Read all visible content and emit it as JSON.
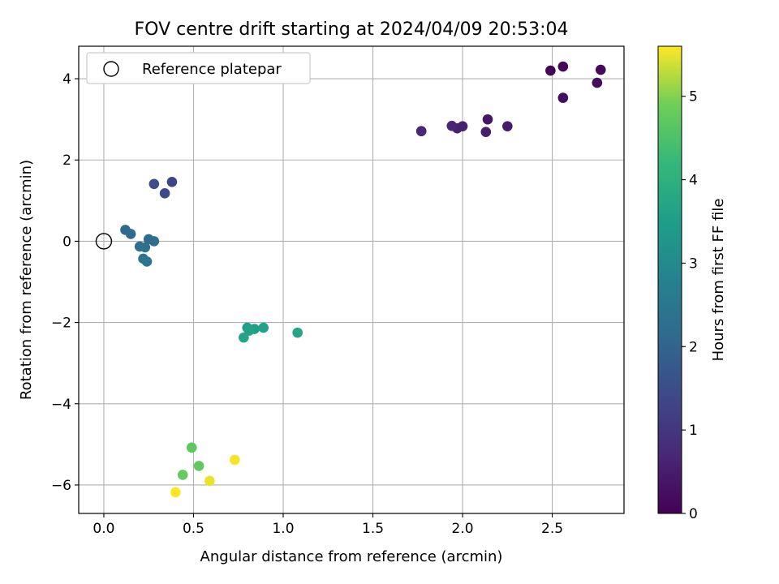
{
  "chart_data": {
    "type": "scatter",
    "title": "FOV centre drift starting at 2024/04/09 20:53:04",
    "xlabel": "Angular distance from reference (arcmin)",
    "ylabel": "Rotation from reference (arcmin)",
    "xlim": [
      -0.14,
      2.9
    ],
    "ylim": [
      -6.7,
      4.8
    ],
    "xticks": [
      0.0,
      0.5,
      1.0,
      1.5,
      2.0,
      2.5
    ],
    "xtick_labels": [
      "0.0",
      "0.5",
      "1.0",
      "1.5",
      "2.0",
      "2.5"
    ],
    "yticks": [
      -6,
      -4,
      -2,
      0,
      2,
      4
    ],
    "ytick_labels": [
      "−6",
      "−4",
      "−2",
      "0",
      "2",
      "4"
    ],
    "grid": true,
    "legend": {
      "placement": "top-left",
      "entries": [
        {
          "label": "Reference platepar",
          "marker": "open-circle"
        }
      ]
    },
    "reference": {
      "x": 0.0,
      "y": 0.0
    },
    "colorbar": {
      "label": "Hours from first FF file",
      "range": [
        0,
        5.6
      ],
      "ticks": [
        0,
        1,
        2,
        3,
        4,
        5
      ],
      "tick_labels": [
        "0",
        "1",
        "2",
        "3",
        "4",
        "5"
      ],
      "colormap": "viridis"
    },
    "points": [
      {
        "x": 2.49,
        "y": 4.2,
        "c": 0.05
      },
      {
        "x": 2.56,
        "y": 4.3,
        "c": 0.1
      },
      {
        "x": 2.77,
        "y": 4.22,
        "c": 0.15
      },
      {
        "x": 2.75,
        "y": 3.9,
        "c": 0.2
      },
      {
        "x": 2.56,
        "y": 3.53,
        "c": 0.25
      },
      {
        "x": 2.14,
        "y": 3.0,
        "c": 0.35
      },
      {
        "x": 2.25,
        "y": 2.83,
        "c": 0.45
      },
      {
        "x": 2.13,
        "y": 2.69,
        "c": 0.5
      },
      {
        "x": 2.0,
        "y": 2.83,
        "c": 0.55
      },
      {
        "x": 1.97,
        "y": 2.78,
        "c": 0.6
      },
      {
        "x": 1.94,
        "y": 2.84,
        "c": 0.65
      },
      {
        "x": 1.77,
        "y": 2.71,
        "c": 0.7
      },
      {
        "x": 1.77,
        "y": 2.71,
        "c": 0.72
      },
      {
        "x": 0.38,
        "y": 1.46,
        "c": 1.3
      },
      {
        "x": 0.34,
        "y": 1.18,
        "c": 1.4
      },
      {
        "x": 0.28,
        "y": 1.41,
        "c": 1.5
      },
      {
        "x": 0.12,
        "y": 0.28,
        "c": 2.1
      },
      {
        "x": 0.15,
        "y": 0.18,
        "c": 2.15
      },
      {
        "x": 0.25,
        "y": 0.05,
        "c": 2.2
      },
      {
        "x": 0.28,
        "y": 0.0,
        "c": 2.25
      },
      {
        "x": 0.2,
        "y": -0.13,
        "c": 2.3
      },
      {
        "x": 0.23,
        "y": -0.15,
        "c": 2.35
      },
      {
        "x": 0.22,
        "y": -0.43,
        "c": 2.4
      },
      {
        "x": 0.24,
        "y": -0.5,
        "c": 2.45
      },
      {
        "x": 0.8,
        "y": -2.13,
        "c": 3.5
      },
      {
        "x": 0.84,
        "y": -2.16,
        "c": 3.55
      },
      {
        "x": 0.89,
        "y": -2.13,
        "c": 3.6
      },
      {
        "x": 0.81,
        "y": -2.2,
        "c": 3.62
      },
      {
        "x": 0.78,
        "y": -2.37,
        "c": 3.65
      },
      {
        "x": 1.08,
        "y": -2.25,
        "c": 3.7
      },
      {
        "x": 0.49,
        "y": -5.08,
        "c": 4.7
      },
      {
        "x": 0.53,
        "y": -5.53,
        "c": 4.75
      },
      {
        "x": 0.44,
        "y": -5.75,
        "c": 4.8
      },
      {
        "x": 0.59,
        "y": -5.9,
        "c": 5.5
      },
      {
        "x": 0.73,
        "y": -5.38,
        "c": 5.55
      },
      {
        "x": 0.4,
        "y": -6.18,
        "c": 5.6
      }
    ]
  }
}
